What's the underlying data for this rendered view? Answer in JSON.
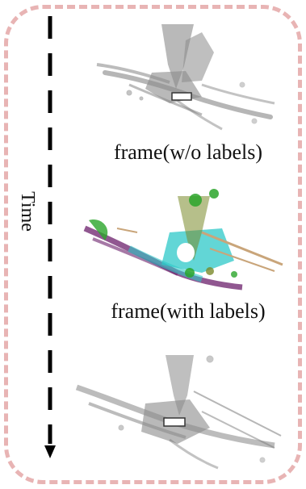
{
  "time_axis": {
    "label": "Time"
  },
  "frames": [
    {
      "caption": "frame(w/o labels)",
      "labeled": false
    },
    {
      "caption": "frame(with labels)",
      "labeled": true
    },
    {
      "caption": "",
      "labeled": false
    }
  ],
  "colors": {
    "border": "#e8b4b4",
    "unlabeled_points": "#8a8a8a",
    "label_cyan": "#2ec8c8",
    "label_purple": "#6b1f6b",
    "label_green": "#2aa52a",
    "label_tan": "#c9a57a",
    "label_olive": "#7a8a2a"
  }
}
